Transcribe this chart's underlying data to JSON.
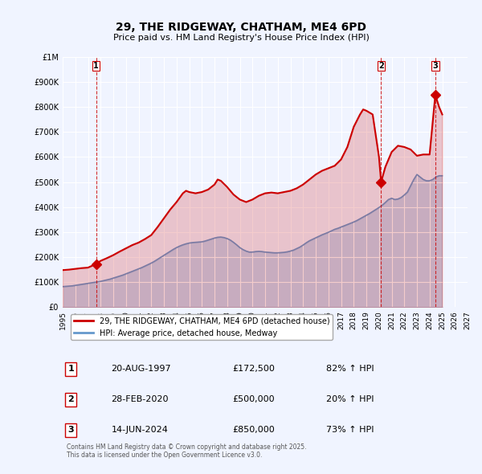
{
  "title": "29, THE RIDGEWAY, CHATHAM, ME4 6PD",
  "subtitle": "Price paid vs. HM Land Registry's House Price Index (HPI)",
  "background_color": "#f0f4ff",
  "plot_bg_color": "#f0f4ff",
  "ylim": [
    0,
    1000000
  ],
  "xlim_start": 1995,
  "xlim_end": 2027,
  "yticks": [
    0,
    100000,
    200000,
    300000,
    400000,
    500000,
    600000,
    700000,
    800000,
    900000,
    1000000
  ],
  "ytick_labels": [
    "£0",
    "£100K",
    "£200K",
    "£300K",
    "£400K",
    "£500K",
    "£600K",
    "£700K",
    "£800K",
    "£900K",
    "£1M"
  ],
  "xticks": [
    1995,
    1996,
    1997,
    1998,
    1999,
    2000,
    2001,
    2002,
    2003,
    2004,
    2005,
    2006,
    2007,
    2008,
    2009,
    2010,
    2011,
    2012,
    2013,
    2014,
    2015,
    2016,
    2017,
    2018,
    2019,
    2020,
    2021,
    2022,
    2023,
    2024,
    2025,
    2026,
    2027
  ],
  "red_line_color": "#cc0000",
  "blue_line_color": "#6699cc",
  "sale_markers": [
    {
      "label": "1",
      "year": 1997.637,
      "price": 172500
    },
    {
      "label": "2",
      "year": 2020.165,
      "price": 500000
    },
    {
      "label": "3",
      "year": 2024.455,
      "price": 850000
    }
  ],
  "vline_color": "#cc0000",
  "vline_style": "--",
  "legend_entries": [
    "29, THE RIDGEWAY, CHATHAM, ME4 6PD (detached house)",
    "HPI: Average price, detached house, Medway"
  ],
  "table_entries": [
    {
      "num": "1",
      "date": "20-AUG-1997",
      "price": "£172,500",
      "change": "82% ↑ HPI"
    },
    {
      "num": "2",
      "date": "28-FEB-2020",
      "price": "£500,000",
      "change": "20% ↑ HPI"
    },
    {
      "num": "3",
      "date": "14-JUN-2024",
      "price": "£850,000",
      "change": "73% ↑ HPI"
    }
  ],
  "footer": "Contains HM Land Registry data © Crown copyright and database right 2025.\nThis data is licensed under the Open Government Licence v3.0.",
  "hpi_data_x": [
    1995.0,
    1995.25,
    1995.5,
    1995.75,
    1996.0,
    1996.25,
    1996.5,
    1996.75,
    1997.0,
    1997.25,
    1997.5,
    1997.75,
    1998.0,
    1998.25,
    1998.5,
    1998.75,
    1999.0,
    1999.25,
    1999.5,
    1999.75,
    2000.0,
    2000.25,
    2000.5,
    2000.75,
    2001.0,
    2001.25,
    2001.5,
    2001.75,
    2002.0,
    2002.25,
    2002.5,
    2002.75,
    2003.0,
    2003.25,
    2003.5,
    2003.75,
    2004.0,
    2004.25,
    2004.5,
    2004.75,
    2005.0,
    2005.25,
    2005.5,
    2005.75,
    2006.0,
    2006.25,
    2006.5,
    2006.75,
    2007.0,
    2007.25,
    2007.5,
    2007.75,
    2008.0,
    2008.25,
    2008.5,
    2008.75,
    2009.0,
    2009.25,
    2009.5,
    2009.75,
    2010.0,
    2010.25,
    2010.5,
    2010.75,
    2011.0,
    2011.25,
    2011.5,
    2011.75,
    2012.0,
    2012.25,
    2012.5,
    2012.75,
    2013.0,
    2013.25,
    2013.5,
    2013.75,
    2014.0,
    2014.25,
    2014.5,
    2014.75,
    2015.0,
    2015.25,
    2015.5,
    2015.75,
    2016.0,
    2016.25,
    2016.5,
    2016.75,
    2017.0,
    2017.25,
    2017.5,
    2017.75,
    2018.0,
    2018.25,
    2018.5,
    2018.75,
    2019.0,
    2019.25,
    2019.5,
    2019.75,
    2020.0,
    2020.25,
    2020.5,
    2020.75,
    2021.0,
    2021.25,
    2021.5,
    2021.75,
    2022.0,
    2022.25,
    2022.5,
    2022.75,
    2023.0,
    2023.25,
    2023.5,
    2023.75,
    2024.0,
    2024.25,
    2024.5,
    2024.75,
    2025.0
  ],
  "hpi_data_y": [
    82000,
    83000,
    84000,
    85000,
    87000,
    89000,
    91000,
    93000,
    95000,
    97000,
    99000,
    101000,
    103000,
    106000,
    109000,
    112000,
    116000,
    120000,
    124000,
    128000,
    133000,
    138000,
    143000,
    148000,
    153000,
    158000,
    164000,
    170000,
    176000,
    183000,
    191000,
    199000,
    207000,
    215000,
    223000,
    231000,
    238000,
    244000,
    249000,
    253000,
    256000,
    258000,
    259000,
    260000,
    261000,
    264000,
    268000,
    272000,
    276000,
    279000,
    280000,
    278000,
    274000,
    268000,
    259000,
    249000,
    238000,
    230000,
    224000,
    220000,
    220000,
    222000,
    223000,
    222000,
    220000,
    219000,
    218000,
    217000,
    217000,
    218000,
    219000,
    221000,
    224000,
    228000,
    234000,
    240000,
    248000,
    257000,
    265000,
    271000,
    277000,
    283000,
    289000,
    294000,
    299000,
    305000,
    311000,
    315000,
    320000,
    325000,
    330000,
    335000,
    340000,
    346000,
    353000,
    360000,
    367000,
    374000,
    382000,
    390000,
    398000,
    407000,
    418000,
    430000,
    435000,
    430000,
    432000,
    438000,
    448000,
    460000,
    485000,
    510000,
    530000,
    520000,
    510000,
    505000,
    505000,
    510000,
    520000,
    525000,
    525000
  ],
  "property_data_x": [
    1995.0,
    1995.5,
    1996.0,
    1996.5,
    1997.0,
    1997.637,
    1998.0,
    1998.5,
    1999.0,
    1999.5,
    2000.0,
    2000.5,
    2001.0,
    2001.5,
    2002.0,
    2002.5,
    2003.0,
    2003.5,
    2004.0,
    2004.5,
    2004.75,
    2005.0,
    2005.5,
    2006.0,
    2006.5,
    2007.0,
    2007.25,
    2007.5,
    2008.0,
    2008.5,
    2009.0,
    2009.5,
    2010.0,
    2010.5,
    2011.0,
    2011.5,
    2012.0,
    2012.5,
    2013.0,
    2013.5,
    2014.0,
    2014.5,
    2015.0,
    2015.5,
    2016.0,
    2016.5,
    2017.0,
    2017.5,
    2017.75,
    2018.0,
    2018.5,
    2018.75,
    2019.0,
    2019.5,
    2020.0,
    2020.165,
    2020.5,
    2021.0,
    2021.5,
    2022.0,
    2022.5,
    2023.0,
    2023.5,
    2024.0,
    2024.455,
    2024.5,
    2024.75,
    2025.0
  ],
  "property_data_y": [
    148000,
    150000,
    153000,
    156000,
    158000,
    172500,
    185000,
    196000,
    208000,
    222000,
    235000,
    248000,
    258000,
    272000,
    288000,
    320000,
    355000,
    390000,
    420000,
    455000,
    465000,
    460000,
    455000,
    460000,
    470000,
    490000,
    510000,
    505000,
    480000,
    450000,
    430000,
    420000,
    430000,
    445000,
    455000,
    458000,
    455000,
    460000,
    465000,
    475000,
    490000,
    510000,
    530000,
    545000,
    555000,
    565000,
    590000,
    640000,
    680000,
    720000,
    770000,
    790000,
    785000,
    770000,
    600000,
    500000,
    560000,
    620000,
    645000,
    640000,
    630000,
    605000,
    610000,
    610000,
    850000,
    840000,
    800000,
    770000
  ]
}
